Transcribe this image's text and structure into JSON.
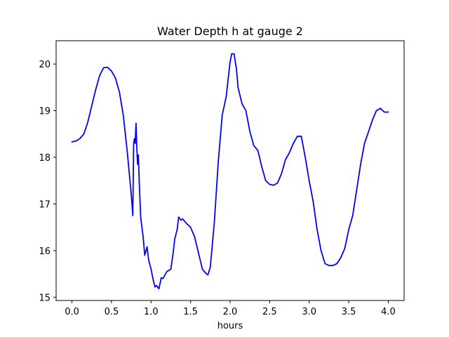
{
  "chart_data": {
    "type": "line",
    "title": "Water Depth h at gauge 2",
    "xlabel": "hours",
    "ylabel": "",
    "xlim": [
      -0.2,
      4.2
    ],
    "ylim": [
      14.93,
      20.5
    ],
    "xticks": [
      "0.0",
      "0.5",
      "1.0",
      "1.5",
      "2.0",
      "2.5",
      "3.0",
      "3.5",
      "4.0"
    ],
    "yticks": [
      "15",
      "16",
      "17",
      "18",
      "19",
      "20"
    ],
    "grid": false,
    "legend": "none",
    "series": [
      {
        "color": "#0000ff",
        "x": [
          0.0,
          0.05,
          0.1,
          0.15,
          0.2,
          0.25,
          0.3,
          0.35,
          0.4,
          0.45,
          0.5,
          0.55,
          0.6,
          0.65,
          0.7,
          0.75,
          0.77,
          0.78,
          0.79,
          0.8,
          0.81,
          0.82,
          0.83,
          0.84,
          0.85,
          0.87,
          0.9,
          0.92,
          0.95,
          0.97,
          1.0,
          1.03,
          1.05,
          1.07,
          1.1,
          1.13,
          1.15,
          1.2,
          1.23,
          1.25,
          1.28,
          1.3,
          1.33,
          1.35,
          1.38,
          1.4,
          1.45,
          1.5,
          1.55,
          1.6,
          1.65,
          1.7,
          1.72,
          1.75,
          1.8,
          1.85,
          1.9,
          1.95,
          2.0,
          2.02,
          2.05,
          2.08,
          2.1,
          2.15,
          2.2,
          2.25,
          2.3,
          2.35,
          2.4,
          2.45,
          2.5,
          2.55,
          2.6,
          2.65,
          2.7,
          2.75,
          2.8,
          2.85,
          2.9,
          2.95,
          3.0,
          3.05,
          3.1,
          3.15,
          3.2,
          3.25,
          3.3,
          3.35,
          3.4,
          3.45,
          3.5,
          3.55,
          3.6,
          3.65,
          3.7,
          3.75,
          3.8,
          3.85,
          3.9,
          3.95,
          4.0
        ],
        "y": [
          18.33,
          18.35,
          18.4,
          18.5,
          18.75,
          19.1,
          19.45,
          19.75,
          19.92,
          19.93,
          19.85,
          19.7,
          19.4,
          18.9,
          18.1,
          17.2,
          16.75,
          18.3,
          18.4,
          18.3,
          18.73,
          18.2,
          17.85,
          18.05,
          17.5,
          16.7,
          16.3,
          15.9,
          16.08,
          15.8,
          15.6,
          15.35,
          15.22,
          15.25,
          15.18,
          15.42,
          15.4,
          15.55,
          15.58,
          15.6,
          15.95,
          16.25,
          16.45,
          16.72,
          16.65,
          16.68,
          16.58,
          16.5,
          16.3,
          15.95,
          15.6,
          15.5,
          15.48,
          15.65,
          16.6,
          17.9,
          18.9,
          19.3,
          20.05,
          20.22,
          20.22,
          19.9,
          19.5,
          19.15,
          19.0,
          18.55,
          18.25,
          18.15,
          17.8,
          17.5,
          17.42,
          17.4,
          17.45,
          17.65,
          17.95,
          18.1,
          18.3,
          18.45,
          18.45,
          18.0,
          17.5,
          17.05,
          16.45,
          16.0,
          15.72,
          15.68,
          15.68,
          15.72,
          15.85,
          16.05,
          16.45,
          16.75,
          17.3,
          17.85,
          18.3,
          18.55,
          18.8,
          19.0,
          19.05,
          18.97,
          18.97
        ]
      }
    ]
  }
}
